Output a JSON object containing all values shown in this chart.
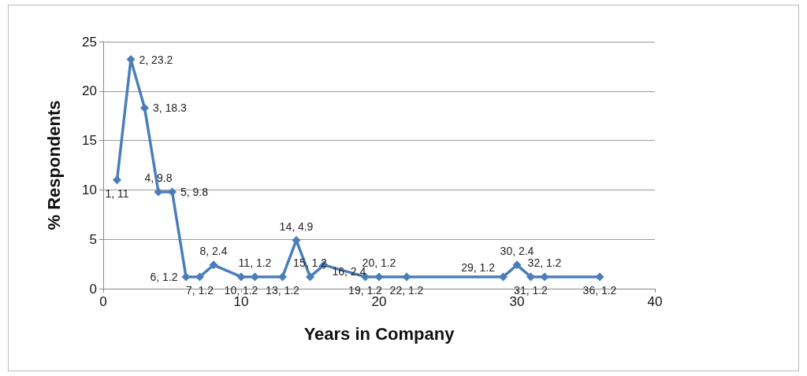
{
  "chart_data": {
    "type": "line",
    "xlabel": "Years in Company",
    "ylabel": "% Respondents",
    "x": [
      1,
      2,
      3,
      4,
      5,
      6,
      7,
      8,
      10,
      11,
      13,
      14,
      15,
      16,
      19,
      20,
      22,
      29,
      30,
      31,
      32,
      36
    ],
    "series": [
      {
        "color": "#4a7ebb",
        "values": [
          11,
          23.2,
          18.3,
          9.8,
          9.8,
          1.2,
          1.2,
          2.4,
          1.2,
          1.2,
          1.2,
          4.9,
          1.2,
          2.4,
          1.2,
          1.2,
          1.2,
          1.2,
          2.4,
          1.2,
          1.2,
          1.2
        ],
        "value_labels": [
          "1, 11",
          "2, 23.2",
          "3, 18.3",
          "4, 9.8",
          "5, 9.8",
          "6, 1.2",
          "7, 1.2",
          "8, 2.4",
          "10, 1.2",
          "11, 1.2",
          "13, 1.2",
          "14, 4.9",
          "15, 1.2",
          "16, 2.4",
          "19, 1.2",
          "20, 1.2",
          "22, 1.2",
          "29, 1.2",
          "30, 2.4",
          "31, 1.2",
          "32, 1.2",
          "36, 1.2"
        ]
      }
    ],
    "xlim": [
      0,
      40
    ],
    "xticks": [
      0,
      10,
      20,
      30,
      40
    ],
    "ylim": [
      0,
      25
    ],
    "yticks": [
      0,
      5,
      10,
      15,
      20,
      25
    ],
    "grid": "y",
    "marker": "diamond",
    "line_style": "solid"
  }
}
